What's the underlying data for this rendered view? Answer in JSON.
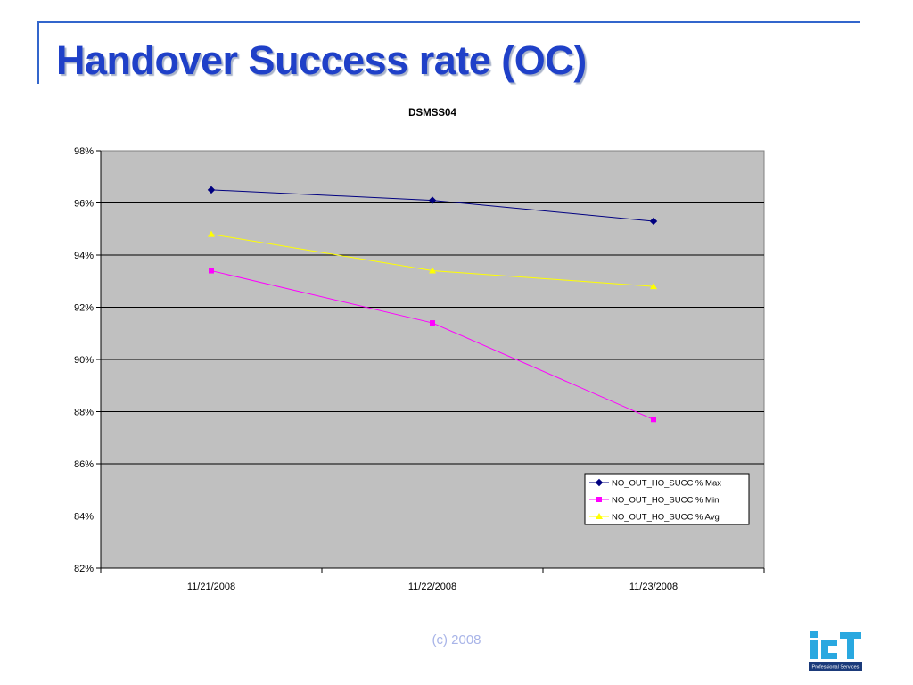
{
  "slide": {
    "title": "Handover Success rate (OC)",
    "footer": "(c) 2008",
    "logo_subtitle": "Professional Services",
    "colors": {
      "title": "#1f40c8",
      "rule": "#3366cc",
      "plot_bg": "#c0c0c0"
    }
  },
  "chart_data": {
    "type": "line",
    "title": "DSMSS04",
    "categories": [
      "11/21/2008",
      "11/22/2008",
      "11/23/2008"
    ],
    "y_ticks": [
      "98%",
      "96%",
      "94%",
      "92%",
      "90%",
      "88%",
      "86%",
      "84%",
      "82%"
    ],
    "ylim": [
      82,
      98
    ],
    "y_unit": "%",
    "grid": true,
    "legend_position": "bottom-right",
    "series": [
      {
        "name": "NO_OUT_HO_SUCC % Max",
        "color": "#000080",
        "marker": "diamond",
        "values": [
          96.5,
          96.1,
          95.3
        ]
      },
      {
        "name": "NO_OUT_HO_SUCC % Min",
        "color": "#ff00ff",
        "marker": "square",
        "values": [
          93.4,
          91.4,
          87.7
        ]
      },
      {
        "name": "NO_OUT_HO_SUCC % Avg",
        "color": "#ffff00",
        "marker": "triangle",
        "values": [
          94.8,
          93.4,
          92.8
        ]
      }
    ]
  }
}
